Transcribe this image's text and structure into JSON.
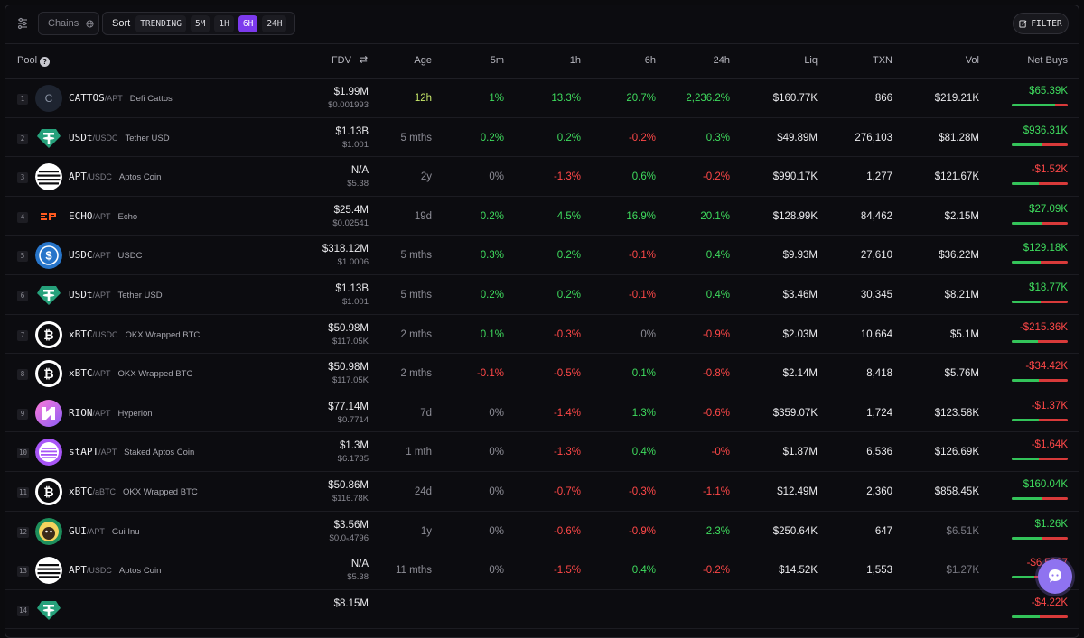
{
  "toolbar": {
    "chains_label": "Chains",
    "sort_label": "Sort",
    "sort_options": [
      "TRENDING",
      "5M",
      "1H",
      "6H",
      "24H"
    ],
    "active_sort": "6H",
    "filter_label": "FILTER"
  },
  "columns": {
    "pool": "Pool",
    "fdv": "FDV",
    "age": "Age",
    "m5": "5m",
    "h1": "1h",
    "h6": "6h",
    "h24": "24h",
    "liq": "Liq",
    "txn": "TXN",
    "vol": "Vol",
    "net": "Net Buys"
  },
  "colors": {
    "positive": "#3fdc5e",
    "negative": "#ff4848",
    "accent": "#7c3aed"
  },
  "rows": [
    {
      "rank": "1",
      "symbol": "CATTOS",
      "quote": "/APT",
      "name": "Defi Cattos",
      "logo": "letter-c-logo",
      "logo_text": "C",
      "fdv": "$1.99M",
      "price": "$0.001993",
      "age": "12h",
      "m5": "1%",
      "h1": "13.3%",
      "h6": "20.7%",
      "h24": "2,236.2%",
      "liq": "$160.77K",
      "txn": "866",
      "vol": "$219.21K",
      "net": "$65.39K",
      "buy_ratio": 0.78
    },
    {
      "rank": "2",
      "symbol": "USDt",
      "quote": "/USDC",
      "name": "Tether USD",
      "logo": "tether-logo",
      "fdv": "$1.13B",
      "price": "$1.001",
      "age": "5 mths",
      "m5": "0.2%",
      "h1": "0.2%",
      "h6": "-0.2%",
      "h24": "0.3%",
      "liq": "$49.89M",
      "txn": "276,103",
      "vol": "$81.28M",
      "net": "$936.31K",
      "buy_ratio": 0.55
    },
    {
      "rank": "3",
      "symbol": "APT",
      "quote": "/USDC",
      "name": "Aptos Coin",
      "logo": "aptos-logo",
      "fdv": "N/A",
      "price": "$5.38",
      "age": "2y",
      "m5": "0%",
      "h1": "-1.3%",
      "h6": "0.6%",
      "h24": "-0.2%",
      "liq": "$990.17K",
      "txn": "1,277",
      "vol": "$121.67K",
      "net": "-$1.52K",
      "buy_ratio": 0.48
    },
    {
      "rank": "4",
      "symbol": "ECHO",
      "quote": "/APT",
      "name": "Echo",
      "logo": "echo-logo",
      "fdv": "$25.4M",
      "price": "$0.02541",
      "age": "19d",
      "m5": "0.2%",
      "h1": "4.5%",
      "h6": "16.9%",
      "h24": "20.1%",
      "liq": "$128.99K",
      "txn": "84,462",
      "vol": "$2.15M",
      "net": "$27.09K",
      "buy_ratio": 0.55
    },
    {
      "rank": "5",
      "symbol": "USDC",
      "quote": "/APT",
      "name": "USDC",
      "logo": "usdc-logo",
      "fdv": "$318.12M",
      "price": "$1.0006",
      "age": "5 mths",
      "m5": "0.3%",
      "h1": "0.2%",
      "h6": "-0.1%",
      "h24": "0.4%",
      "liq": "$9.93M",
      "txn": "27,610",
      "vol": "$36.22M",
      "net": "$129.18K",
      "buy_ratio": 0.52
    },
    {
      "rank": "6",
      "symbol": "USDt",
      "quote": "/APT",
      "name": "Tether USD",
      "logo": "tether-logo",
      "fdv": "$1.13B",
      "price": "$1.001",
      "age": "5 mths",
      "m5": "0.2%",
      "h1": "0.2%",
      "h6": "-0.1%",
      "h24": "0.4%",
      "liq": "$3.46M",
      "txn": "30,345",
      "vol": "$8.21M",
      "net": "$18.77K",
      "buy_ratio": 0.52
    },
    {
      "rank": "7",
      "symbol": "xBTC",
      "quote": "/USDC",
      "name": "OKX Wrapped BTC",
      "logo": "bitcoin-logo",
      "fdv": "$50.98M",
      "price": "$117.05K",
      "age": "2 mths",
      "m5": "0.1%",
      "h1": "-0.3%",
      "h6": "0%",
      "h24": "-0.9%",
      "liq": "$2.03M",
      "txn": "10,664",
      "vol": "$5.1M",
      "net": "-$215.36K",
      "buy_ratio": 0.46
    },
    {
      "rank": "8",
      "symbol": "xBTC",
      "quote": "/APT",
      "name": "OKX Wrapped BTC",
      "logo": "bitcoin-logo",
      "fdv": "$50.98M",
      "price": "$117.05K",
      "age": "2 mths",
      "m5": "-0.1%",
      "h1": "-0.5%",
      "h6": "0.1%",
      "h24": "-0.8%",
      "liq": "$2.14M",
      "txn": "8,418",
      "vol": "$5.76M",
      "net": "-$34.42K",
      "buy_ratio": 0.48
    },
    {
      "rank": "9",
      "symbol": "RION",
      "quote": "/APT",
      "name": "Hyperion",
      "logo": "hyperion-logo",
      "fdv": "$77.14M",
      "price": "$0.7714",
      "age": "7d",
      "m5": "0%",
      "h1": "-1.4%",
      "h6": "1.3%",
      "h24": "-0.6%",
      "liq": "$359.07K",
      "txn": "1,724",
      "vol": "$123.58K",
      "net": "-$1.37K",
      "buy_ratio": 0.49
    },
    {
      "rank": "10",
      "symbol": "stAPT",
      "quote": "/APT",
      "name": "Staked Aptos Coin",
      "logo": "staked-aptos-logo",
      "fdv": "$1.3M",
      "price": "$6.1735",
      "age": "1 mth",
      "m5": "0%",
      "h1": "-1.3%",
      "h6": "0.4%",
      "h24": "-0%",
      "liq": "$1.87M",
      "txn": "6,536",
      "vol": "$126.69K",
      "net": "-$1.64K",
      "buy_ratio": 0.49
    },
    {
      "rank": "11",
      "symbol": "xBTC",
      "quote": "/aBTC",
      "name": "OKX Wrapped BTC",
      "logo": "bitcoin-logo",
      "fdv": "$50.86M",
      "price": "$116.78K",
      "age": "24d",
      "m5": "0%",
      "h1": "-0.7%",
      "h6": "-0.3%",
      "h24": "-1.1%",
      "liq": "$12.49M",
      "txn": "2,360",
      "vol": "$858.45K",
      "net": "$160.04K",
      "buy_ratio": 0.55
    },
    {
      "rank": "12",
      "symbol": "GUI",
      "quote": "/APT",
      "name": "Gui Inu",
      "logo": "gui-inu-logo",
      "fdv": "$3.56M",
      "price": "$0.0₅4796",
      "age": "1y",
      "m5": "0%",
      "h1": "-0.6%",
      "h6": "-0.9%",
      "h24": "2.3%",
      "liq": "$250.64K",
      "txn": "647",
      "vol": "$6.51K",
      "vol_dim": true,
      "net": "$1.26K",
      "buy_ratio": 0.55
    },
    {
      "rank": "13",
      "symbol": "APT",
      "quote": "/USDC",
      "name": "Aptos Coin",
      "logo": "aptos-logo",
      "fdv": "N/A",
      "price": "$5.38",
      "age": "11 mths",
      "m5": "0%",
      "h1": "-1.5%",
      "h6": "0.4%",
      "h24": "-0.2%",
      "liq": "$14.52K",
      "txn": "1,553",
      "vol": "$1.27K",
      "vol_dim": true,
      "net": "-$6.5807",
      "buy_ratio": 0.4
    },
    {
      "rank": "14",
      "symbol": "",
      "quote": "",
      "name": "",
      "logo": "tether-logo",
      "fdv": "$8.15M",
      "price": "",
      "age": "",
      "m5": "",
      "h1": "",
      "h6": "",
      "h24": "",
      "liq": "",
      "txn": "",
      "vol": "",
      "net": "-$4.22K",
      "buy_ratio": 0.5
    }
  ]
}
